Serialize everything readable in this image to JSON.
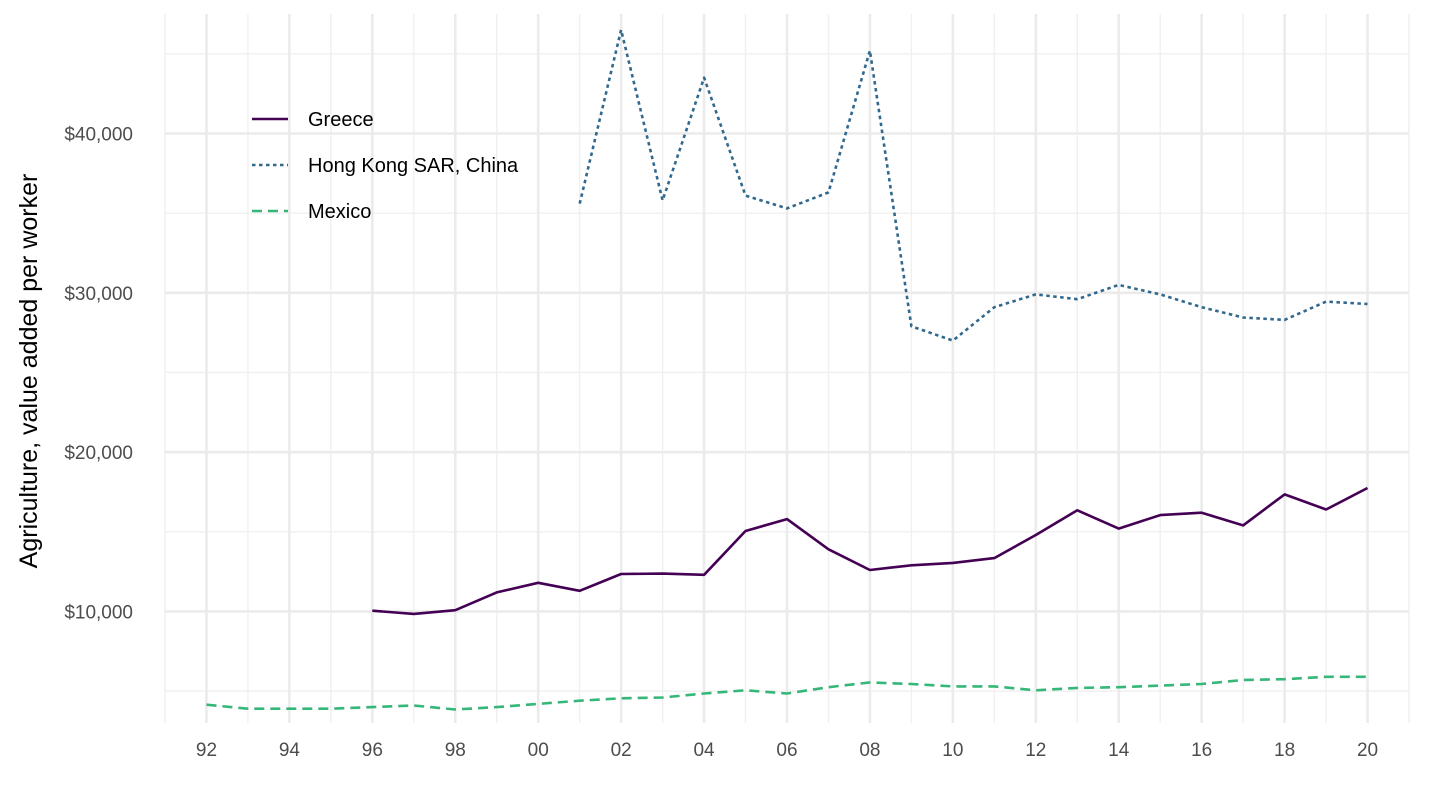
{
  "chart_data": {
    "type": "line",
    "title": "",
    "xlabel": "",
    "ylabel": "Agriculture, value added per worker",
    "xlim": [
      1991,
      2021
    ],
    "ylim": [
      3000,
      47500
    ],
    "x_ticks": [
      1992,
      1994,
      1996,
      1998,
      2000,
      2002,
      2004,
      2006,
      2008,
      2010,
      2012,
      2014,
      2016,
      2018,
      2020
    ],
    "x_tick_labels": [
      "92",
      "94",
      "96",
      "98",
      "00",
      "02",
      "04",
      "06",
      "08",
      "10",
      "12",
      "14",
      "16",
      "18",
      "20"
    ],
    "y_ticks": [
      10000,
      20000,
      30000,
      40000
    ],
    "y_tick_labels": [
      "$10,000",
      "$20,000",
      "$30,000",
      "$40,000"
    ],
    "grid": true,
    "legend_position": "top-left",
    "series": [
      {
        "name": "Greece",
        "color": "#440154",
        "line_style": "solid",
        "x": [
          1996,
          1997,
          1998,
          1999,
          2000,
          2001,
          2002,
          2003,
          2004,
          2005,
          2006,
          2007,
          2008,
          2009,
          2010,
          2011,
          2012,
          2013,
          2014,
          2015,
          2016,
          2017,
          2018,
          2019,
          2020
        ],
        "values": [
          10050,
          9850,
          10080,
          11200,
          11800,
          11300,
          12350,
          12380,
          12300,
          15050,
          15800,
          13900,
          12600,
          12900,
          13050,
          13350,
          14800,
          16350,
          15200,
          16050,
          16200,
          15400,
          17350,
          16400,
          17750
        ]
      },
      {
        "name": "Hong Kong SAR, China",
        "color": "#31688e",
        "line_style": "dotted",
        "x": [
          2001,
          2002,
          2003,
          2004,
          2005,
          2006,
          2007,
          2008,
          2009,
          2010,
          2011,
          2012,
          2013,
          2014,
          2015,
          2016,
          2017,
          2018,
          2019,
          2020
        ],
        "values": [
          35600,
          46500,
          35800,
          43500,
          36100,
          35300,
          36300,
          45200,
          27900,
          27000,
          29100,
          29900,
          29600,
          30500,
          29900,
          29100,
          28450,
          28300,
          29450,
          29300
        ]
      },
      {
        "name": "Mexico",
        "color": "#35b779",
        "line_style": "dashed",
        "x": [
          1992,
          1993,
          1994,
          1995,
          1996,
          1997,
          1998,
          1999,
          2000,
          2001,
          2002,
          2003,
          2004,
          2005,
          2006,
          2007,
          2008,
          2009,
          2010,
          2011,
          2012,
          2013,
          2014,
          2015,
          2016,
          2017,
          2018,
          2019,
          2020
        ],
        "values": [
          4150,
          3900,
          3900,
          3900,
          4000,
          4100,
          3850,
          4000,
          4200,
          4400,
          4550,
          4600,
          4850,
          5050,
          4850,
          5250,
          5550,
          5450,
          5300,
          5300,
          5050,
          5200,
          5250,
          5350,
          5450,
          5700,
          5750,
          5900,
          5900
        ]
      }
    ]
  }
}
